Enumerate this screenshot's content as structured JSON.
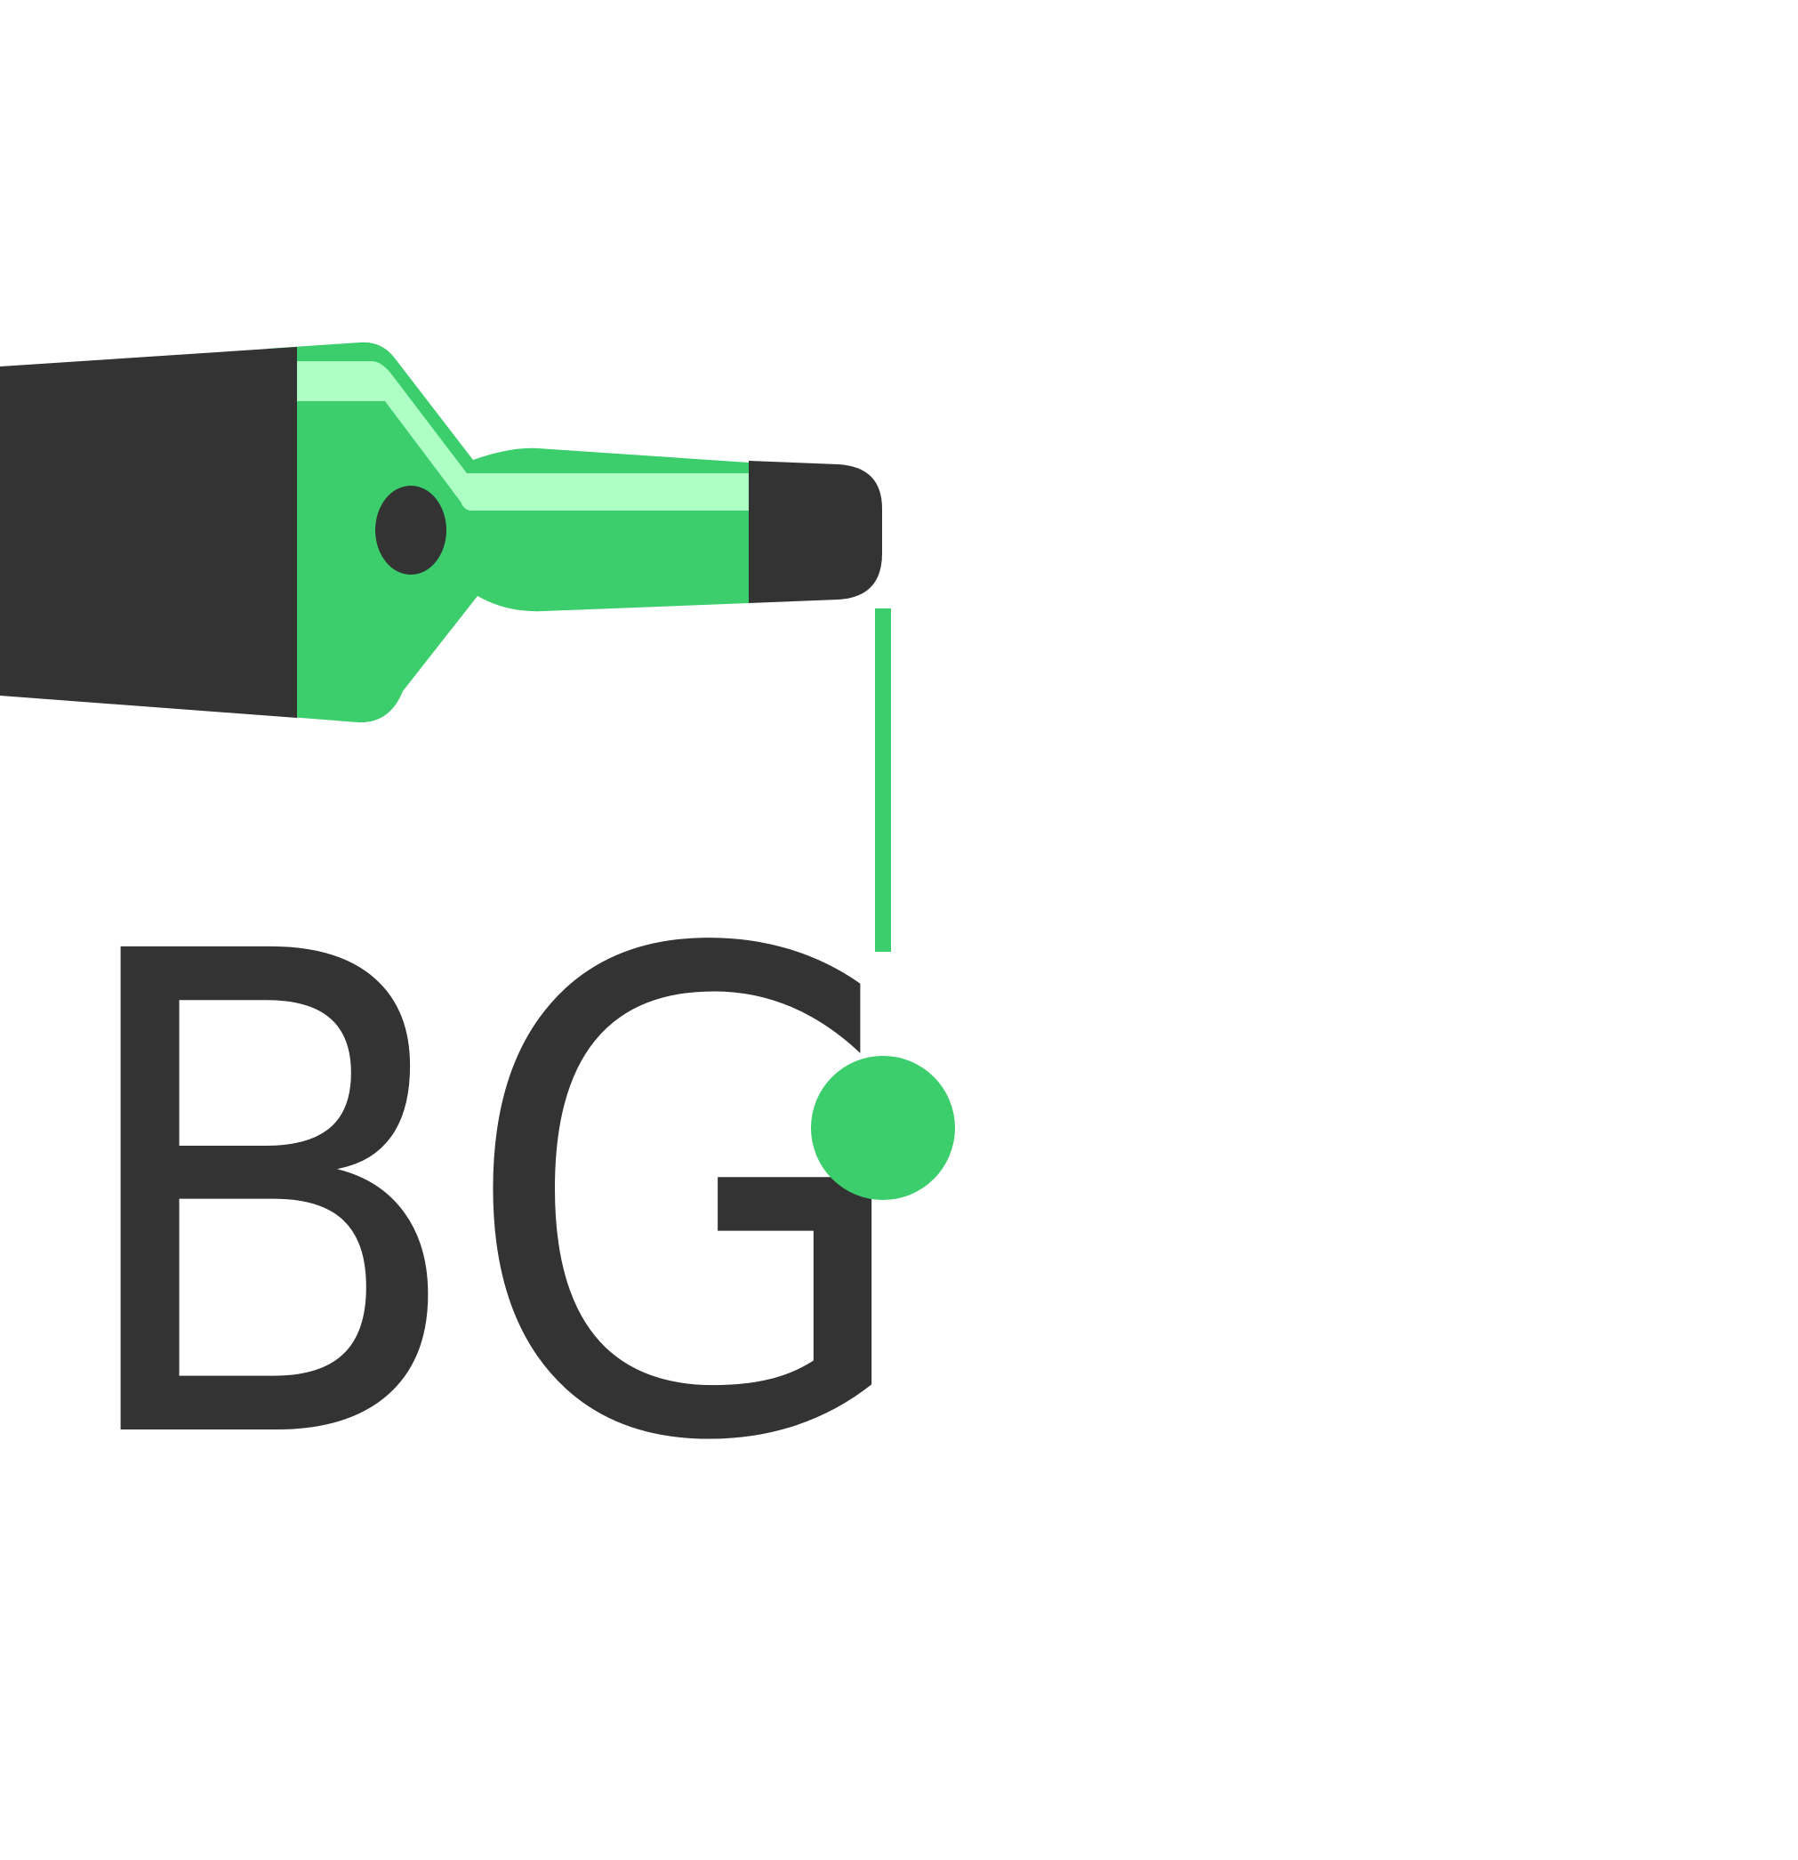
{
  "logo": {
    "monogram": "BG",
    "colors": {
      "background": "#ffffff",
      "ink_dark": "#333333",
      "accent_green": "#3ccd6d",
      "highlight_green": "#adffc4"
    },
    "icon": "fountain-pen-icon"
  }
}
